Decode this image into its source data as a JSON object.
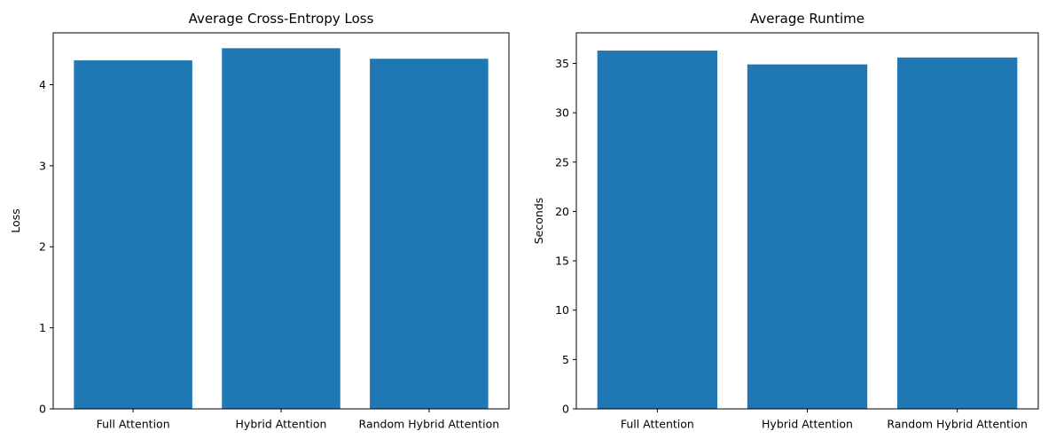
{
  "chart_data": [
    {
      "type": "bar",
      "title": "Average Cross-Entropy Loss",
      "xlabel": "",
      "ylabel": "Loss",
      "categories": [
        "Full Attention",
        "Hybrid Attention",
        "Random Hybrid Attention"
      ],
      "values": [
        4.3,
        4.45,
        4.32
      ],
      "ylim": [
        0,
        4.64
      ],
      "yticks": [
        0,
        1,
        2,
        3,
        4
      ],
      "grid": false,
      "bar_color": "#1f77b4"
    },
    {
      "type": "bar",
      "title": "Average Runtime",
      "xlabel": "",
      "ylabel": "Seconds",
      "categories": [
        "Full Attention",
        "Hybrid Attention",
        "Random Hybrid Attention"
      ],
      "values": [
        36.3,
        34.9,
        35.6
      ],
      "ylim": [
        0,
        38.1
      ],
      "yticks": [
        0,
        5,
        10,
        15,
        20,
        25,
        30,
        35
      ],
      "grid": false,
      "bar_color": "#1f77b4"
    }
  ]
}
